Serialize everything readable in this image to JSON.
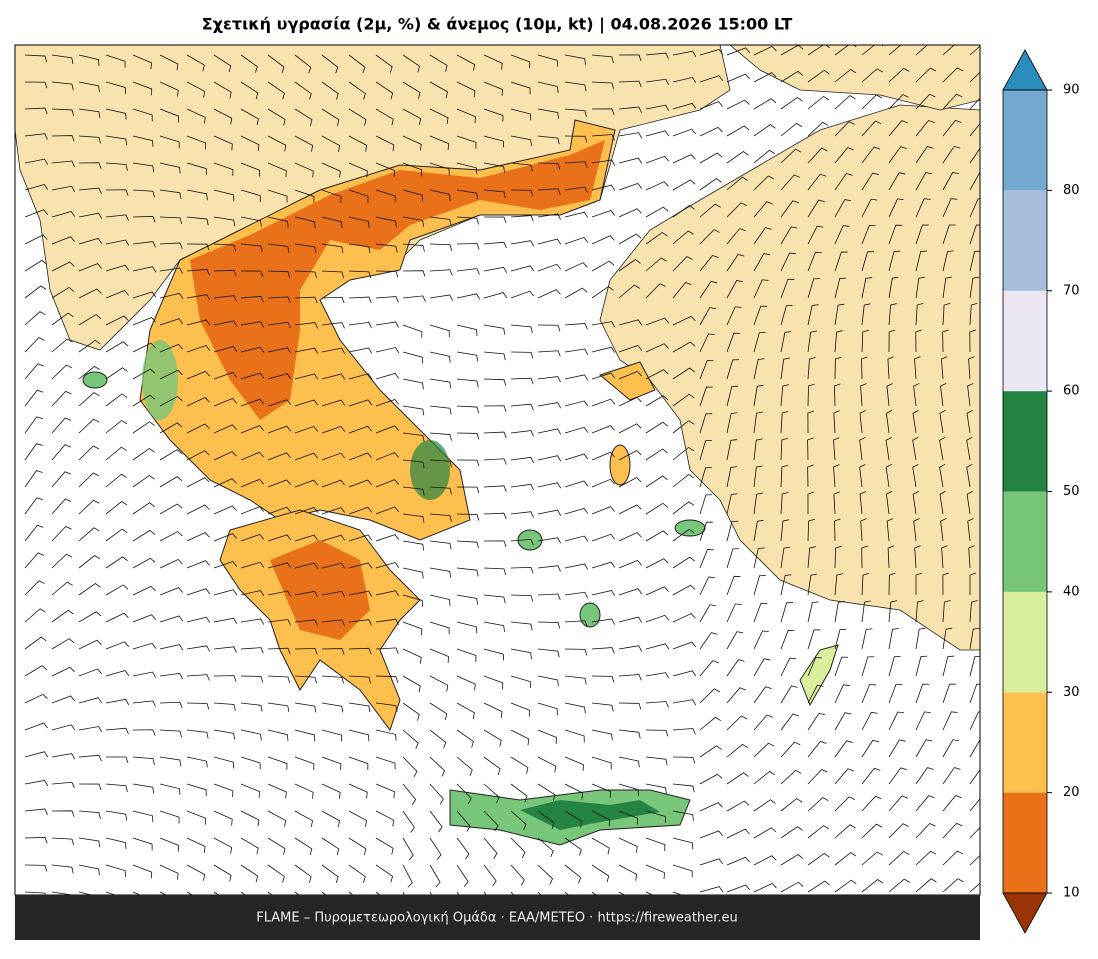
{
  "title": "Σχετική υγρασία (2μ, %) & άνεμος (10μ, kt)  |  04.08.2026 15:00 LT",
  "footer": "FLAME – Πυρομετεωρολογική Ομάδα · ΕΑΑ/METEO · https://fireweather.eu",
  "colorbar": {
    "ticks": [
      10,
      20,
      30,
      40,
      50,
      60,
      70,
      80,
      90
    ],
    "colors": [
      "#e8711a",
      "#fdbf4e",
      "#d9ef9e",
      "#78c679",
      "#238443",
      "#ece7f2",
      "#a6bddb",
      "#74a9cf"
    ],
    "under_color": "#993404",
    "over_color": "#2b8cbe"
  }
}
